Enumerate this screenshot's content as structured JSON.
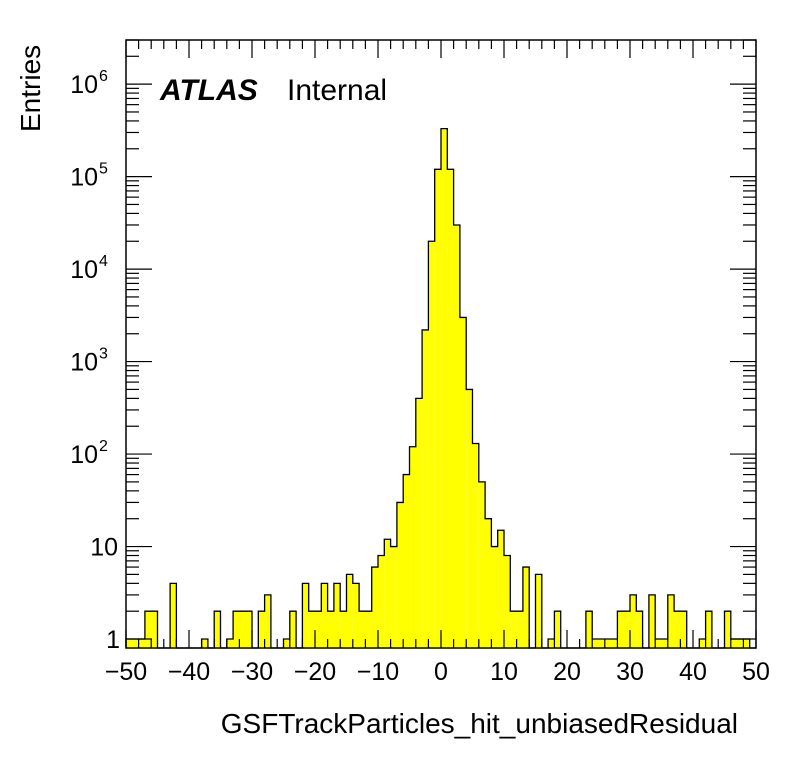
{
  "chart_data": {
    "type": "bar",
    "histogram_style": "step-filled",
    "fill_color": "#ffff00",
    "line_color": "#000000",
    "xlabel": "GSFTrackParticles_hit_unbiasedResidual",
    "ylabel": "Entries",
    "xlim": [
      -50,
      50
    ],
    "ylim": [
      0.8,
      3000000
    ],
    "yscale": "log",
    "bin_width": 1,
    "x_tick_labels": [
      "−50",
      "−40",
      "−30",
      "−20",
      "−10",
      "0",
      "10",
      "20",
      "30",
      "40",
      "50"
    ],
    "y_tick_labels": [
      {
        "base": "1",
        "exp": ""
      },
      {
        "base": "10",
        "exp": ""
      },
      {
        "base": "10",
        "exp": "2"
      },
      {
        "base": "10",
        "exp": "3"
      },
      {
        "base": "10",
        "exp": "4"
      },
      {
        "base": "10",
        "exp": "5"
      },
      {
        "base": "10",
        "exp": "6"
      }
    ],
    "bins": [
      {
        "x": -50,
        "y": 1
      },
      {
        "x": -49,
        "y": 1
      },
      {
        "x": -48,
        "y": 1
      },
      {
        "x": -47,
        "y": 2
      },
      {
        "x": -46,
        "y": 2
      },
      {
        "x": -45,
        "y": 0
      },
      {
        "x": -44,
        "y": 0
      },
      {
        "x": -43,
        "y": 4
      },
      {
        "x": -42,
        "y": 0
      },
      {
        "x": -41,
        "y": 0
      },
      {
        "x": -40,
        "y": 0
      },
      {
        "x": -39,
        "y": 0
      },
      {
        "x": -38,
        "y": 1
      },
      {
        "x": -37,
        "y": 0
      },
      {
        "x": -36,
        "y": 2
      },
      {
        "x": -35,
        "y": 0
      },
      {
        "x": -34,
        "y": 1
      },
      {
        "x": -33,
        "y": 2
      },
      {
        "x": -32,
        "y": 2
      },
      {
        "x": -31,
        "y": 2
      },
      {
        "x": -30,
        "y": 0
      },
      {
        "x": -29,
        "y": 2
      },
      {
        "x": -28,
        "y": 3
      },
      {
        "x": -27,
        "y": 0
      },
      {
        "x": -26,
        "y": 0
      },
      {
        "x": -25,
        "y": 1
      },
      {
        "x": -24,
        "y": 2
      },
      {
        "x": -23,
        "y": 0
      },
      {
        "x": -22,
        "y": 4
      },
      {
        "x": -21,
        "y": 2
      },
      {
        "x": -20,
        "y": 2
      },
      {
        "x": -19,
        "y": 4
      },
      {
        "x": -18,
        "y": 2
      },
      {
        "x": -17,
        "y": 4
      },
      {
        "x": -16,
        "y": 2
      },
      {
        "x": -15,
        "y": 5
      },
      {
        "x": -14,
        "y": 4
      },
      {
        "x": -13,
        "y": 2
      },
      {
        "x": -12,
        "y": 2
      },
      {
        "x": -11,
        "y": 6
      },
      {
        "x": -10,
        "y": 8
      },
      {
        "x": -9,
        "y": 12
      },
      {
        "x": -8,
        "y": 10
      },
      {
        "x": -7,
        "y": 30
      },
      {
        "x": -6,
        "y": 60
      },
      {
        "x": -5,
        "y": 120
      },
      {
        "x": -4,
        "y": 400
      },
      {
        "x": -3,
        "y": 2200
      },
      {
        "x": -2,
        "y": 20000
      },
      {
        "x": -1,
        "y": 120000
      },
      {
        "x": 0,
        "y": 330000
      },
      {
        "x": 1,
        "y": 120000
      },
      {
        "x": 2,
        "y": 30000
      },
      {
        "x": 3,
        "y": 3000
      },
      {
        "x": 4,
        "y": 500
      },
      {
        "x": 5,
        "y": 130
      },
      {
        "x": 6,
        "y": 50
      },
      {
        "x": 7,
        "y": 20
      },
      {
        "x": 8,
        "y": 10
      },
      {
        "x": 9,
        "y": 15
      },
      {
        "x": 10,
        "y": 8
      },
      {
        "x": 11,
        "y": 2
      },
      {
        "x": 12,
        "y": 2
      },
      {
        "x": 13,
        "y": 6
      },
      {
        "x": 14,
        "y": 0
      },
      {
        "x": 15,
        "y": 5
      },
      {
        "x": 16,
        "y": 0
      },
      {
        "x": 17,
        "y": 1
      },
      {
        "x": 18,
        "y": 2
      },
      {
        "x": 19,
        "y": 0
      },
      {
        "x": 20,
        "y": 0
      },
      {
        "x": 21,
        "y": 0
      },
      {
        "x": 22,
        "y": 0
      },
      {
        "x": 23,
        "y": 2
      },
      {
        "x": 24,
        "y": 1
      },
      {
        "x": 25,
        "y": 1
      },
      {
        "x": 26,
        "y": 1
      },
      {
        "x": 27,
        "y": 1
      },
      {
        "x": 28,
        "y": 2
      },
      {
        "x": 29,
        "y": 2
      },
      {
        "x": 30,
        "y": 3
      },
      {
        "x": 31,
        "y": 2
      },
      {
        "x": 32,
        "y": 0
      },
      {
        "x": 33,
        "y": 3
      },
      {
        "x": 34,
        "y": 1
      },
      {
        "x": 35,
        "y": 1
      },
      {
        "x": 36,
        "y": 3
      },
      {
        "x": 37,
        "y": 2
      },
      {
        "x": 38,
        "y": 2
      },
      {
        "x": 39,
        "y": 0
      },
      {
        "x": 40,
        "y": 0
      },
      {
        "x": 41,
        "y": 1
      },
      {
        "x": 42,
        "y": 2
      },
      {
        "x": 43,
        "y": 0
      },
      {
        "x": 44,
        "y": 0
      },
      {
        "x": 45,
        "y": 2
      },
      {
        "x": 46,
        "y": 1
      },
      {
        "x": 47,
        "y": 1
      },
      {
        "x": 48,
        "y": 1
      },
      {
        "x": 49,
        "y": 0
      }
    ],
    "grid": false
  },
  "label": {
    "experiment": "ATLAS",
    "status": "Internal"
  }
}
